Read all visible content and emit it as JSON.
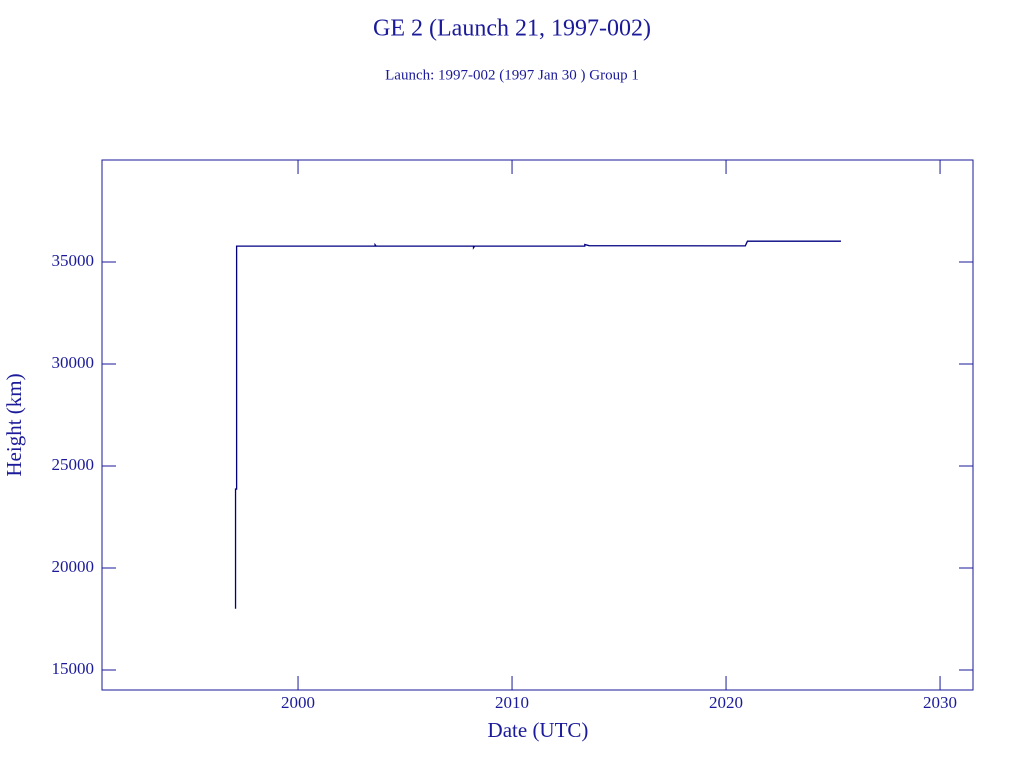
{
  "chart_data": {
    "type": "line",
    "title": "GE 2 (Launch 21, 1997-002)",
    "subtitle": "Launch: 1997-002  (1997 Jan 30 )  Group 1",
    "xlabel": "Date (UTC)",
    "ylabel": "Height (km)",
    "x": [
      1997.08,
      1997.08,
      1997.13,
      1997.13,
      2003.6,
      2003.6,
      2003.65,
      2008.2,
      2008.2,
      2008.25,
      2013.4,
      2013.4,
      2013.6,
      2020.9,
      2021.0,
      2025.37
    ],
    "values": [
      18000,
      23870,
      23870,
      35780,
      35780,
      35850,
      35780,
      35780,
      35700,
      35780,
      35780,
      35860,
      35800,
      35790,
      36020,
      36020
    ],
    "color": "#000080",
    "xlim": [
      1990.84,
      2031.54
    ],
    "xticks": [
      2000,
      2010,
      2020,
      2030
    ],
    "ylim": [
      14020,
      40000
    ],
    "yticks": [
      15000,
      20000,
      25000,
      30000,
      35000
    ]
  }
}
